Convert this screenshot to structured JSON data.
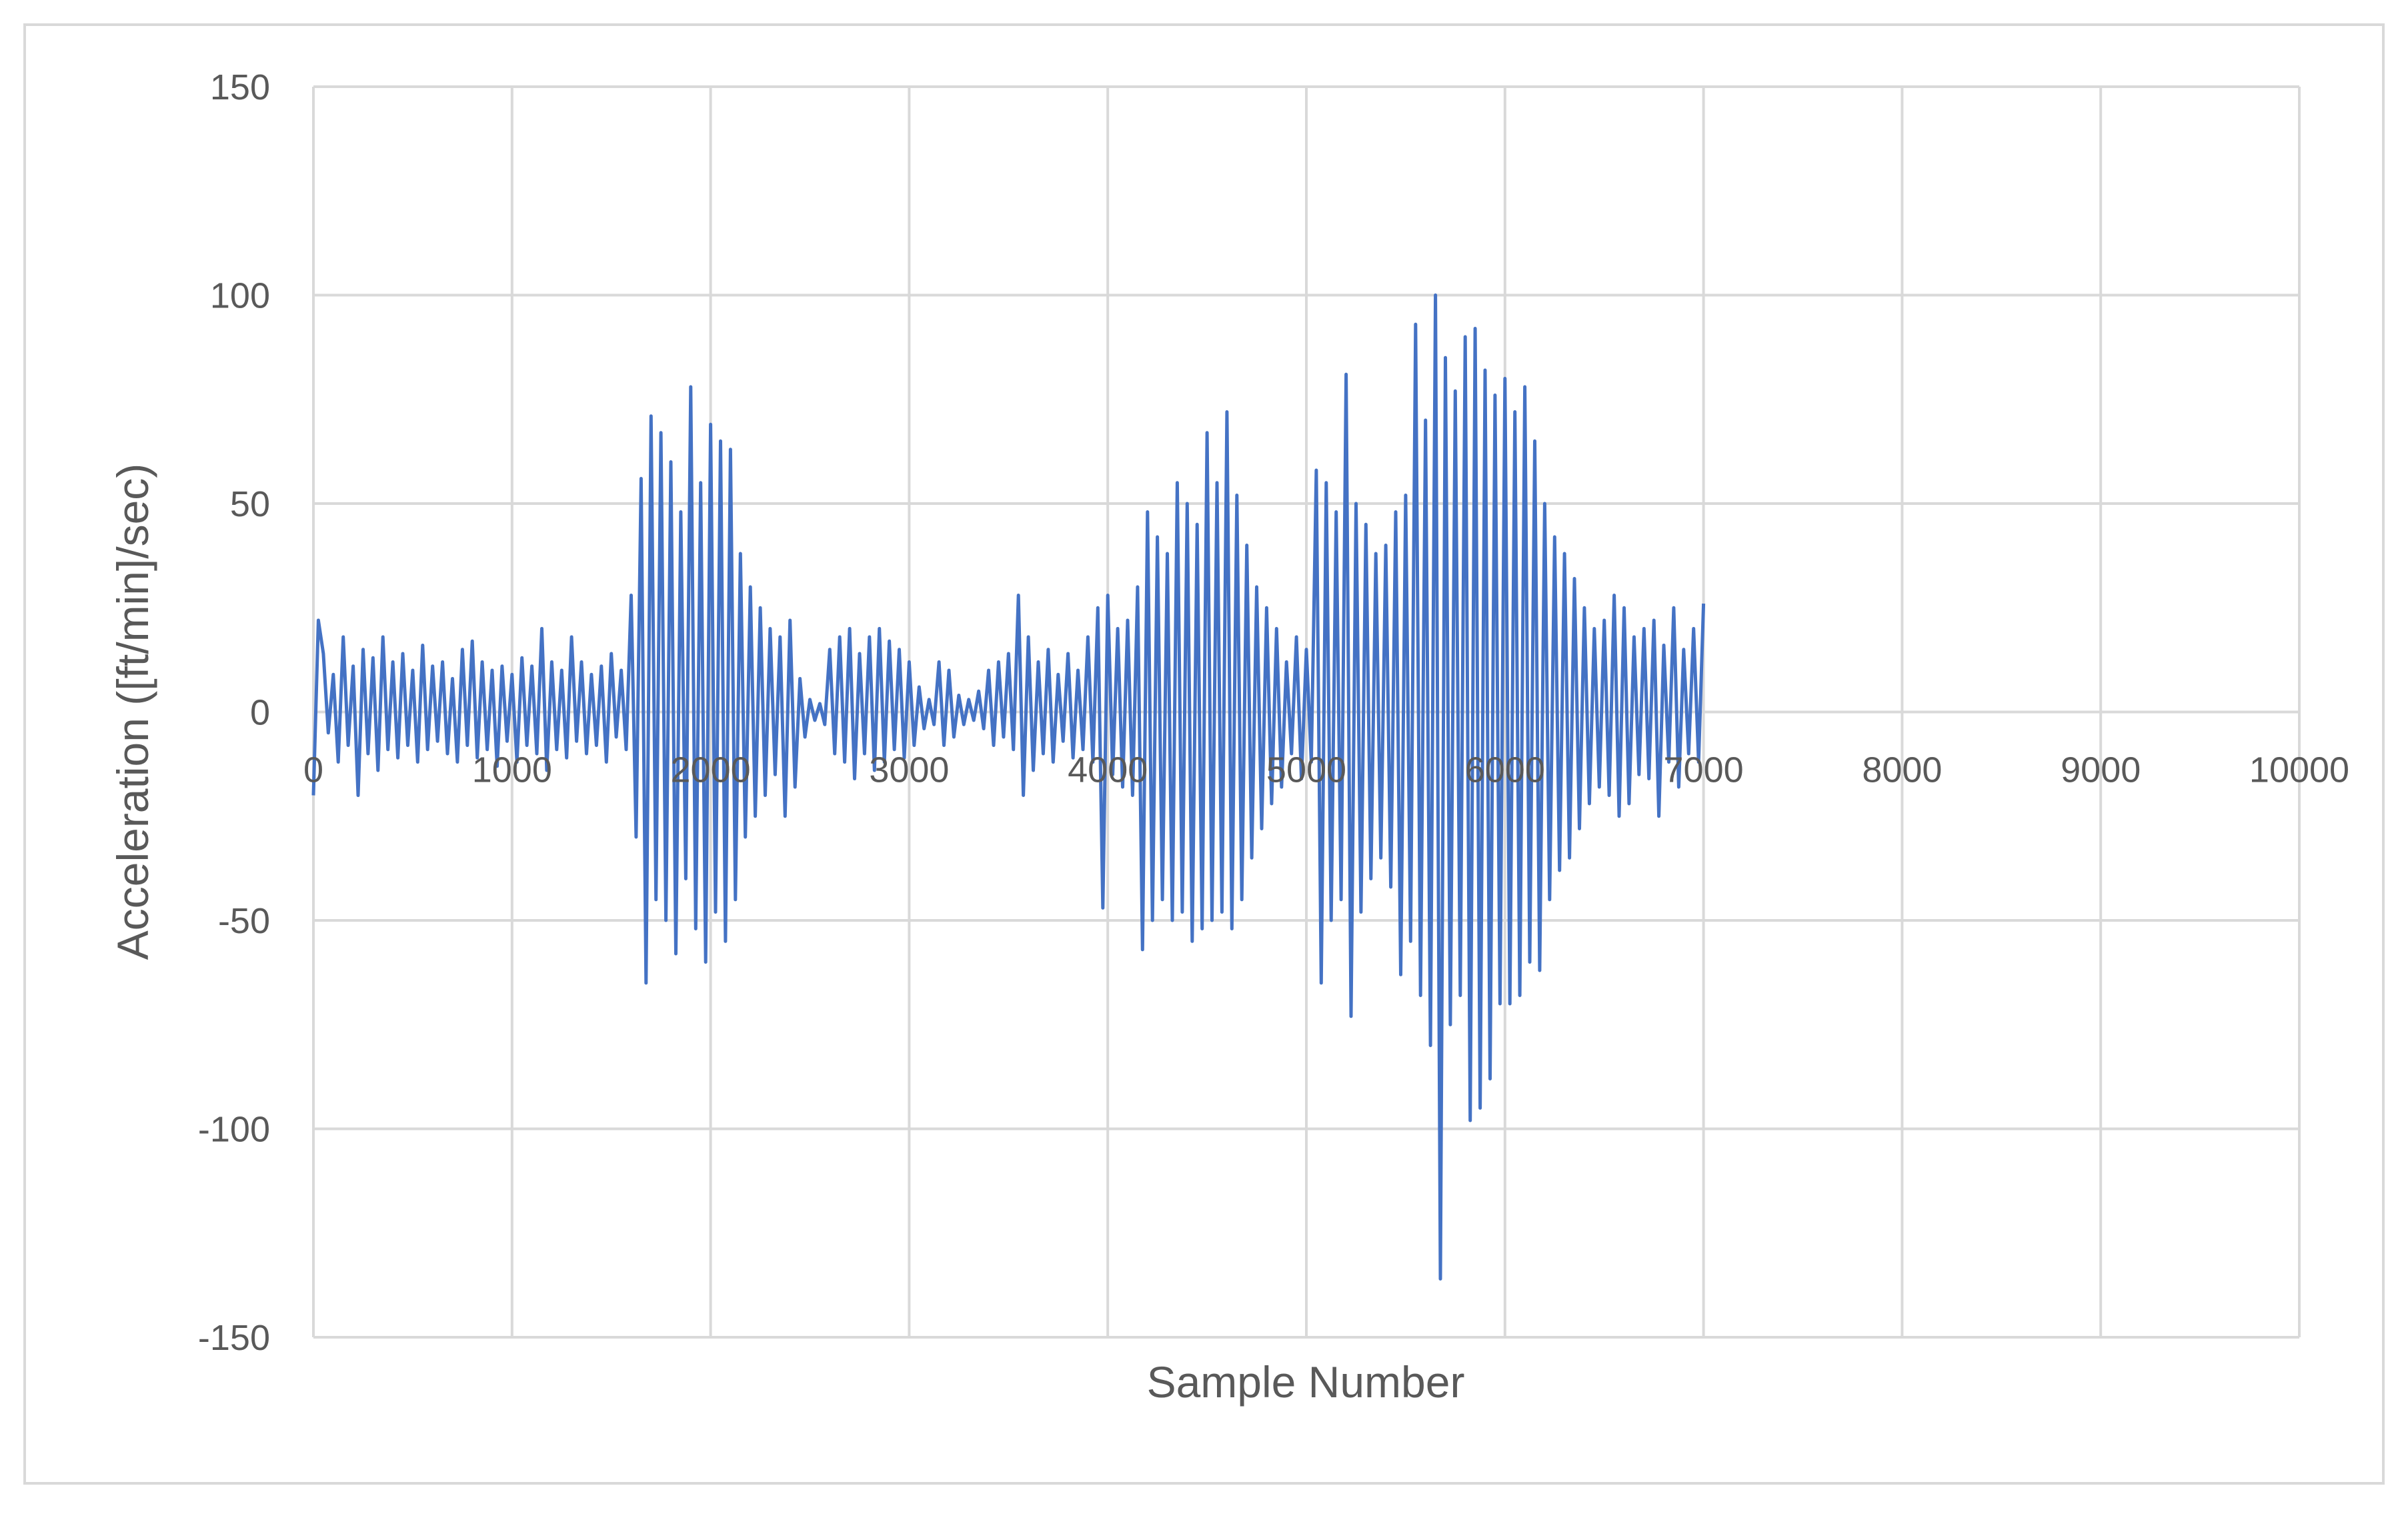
{
  "chart_data": {
    "type": "line",
    "title": "",
    "xlabel": "Sample Number",
    "ylabel": "Acceleration ([ft/min]/sec)",
    "xlim": [
      0,
      10000
    ],
    "ylim": [
      -150,
      150
    ],
    "x_ticks": [
      0,
      1000,
      2000,
      3000,
      4000,
      5000,
      6000,
      7000,
      8000,
      9000,
      10000
    ],
    "y_ticks": [
      150,
      100,
      50,
      0,
      -50,
      -100,
      -150
    ],
    "x_tick_labels": [
      "0",
      "1000",
      "2000",
      "3000",
      "4000",
      "5000",
      "6000",
      "7000",
      "8000",
      "9000",
      "10000"
    ],
    "y_tick_labels": [
      "150",
      "100",
      "50",
      "0",
      "-50",
      "-100",
      "-150"
    ],
    "grid": true,
    "legend": "none",
    "line_color": "#4472c4",
    "series": [
      {
        "x_start": 0,
        "x_step": 25,
        "values": [
          -20,
          22,
          14,
          -5,
          9,
          -12,
          18,
          -8,
          11,
          -20,
          15,
          -10,
          13,
          -14,
          18,
          -9,
          12,
          -11,
          14,
          -8,
          10,
          -12,
          16,
          -9,
          11,
          -7,
          12,
          -10,
          8,
          -12,
          15,
          -8,
          17,
          -11,
          12,
          -9,
          10,
          -13,
          11,
          -7,
          9,
          -12,
          13,
          -8,
          11,
          -10,
          20,
          -14,
          12,
          -9,
          10,
          -11,
          18,
          -7,
          12,
          -10,
          9,
          -8,
          11,
          -12,
          14,
          -6,
          10,
          -9,
          28,
          -30,
          56,
          -65,
          71,
          -45,
          67,
          -50,
          60,
          -58,
          48,
          -40,
          78,
          -52,
          55,
          -60,
          69,
          -48,
          65,
          -55,
          63,
          -45,
          38,
          -30,
          30,
          -25,
          25,
          -20,
          20,
          -15,
          18,
          -25,
          22,
          -18,
          8,
          -6,
          3,
          -2,
          2,
          -3,
          15,
          -10,
          18,
          -12,
          20,
          -16,
          14,
          -10,
          18,
          -14,
          20,
          -12,
          17,
          -9,
          15,
          -11,
          12,
          -8,
          6,
          -4,
          3,
          -3,
          12,
          -8,
          10,
          -6,
          4,
          -3,
          3,
          -2,
          5,
          -4,
          10,
          -8,
          12,
          -6,
          14,
          -9,
          28,
          -20,
          18,
          -14,
          12,
          -10,
          15,
          -12,
          9,
          -7,
          14,
          -11,
          10,
          -9,
          18,
          -12,
          25,
          -47,
          28,
          -15,
          20,
          -18,
          22,
          -20,
          30,
          -57,
          48,
          -50,
          42,
          -45,
          38,
          -50,
          55,
          -48,
          50,
          -55,
          45,
          -52,
          67,
          -50,
          55,
          -48,
          72,
          -52,
          52,
          -45,
          40,
          -35,
          30,
          -28,
          25,
          -22,
          20,
          -18,
          12,
          -10,
          18,
          -16,
          15,
          -12,
          58,
          -65,
          55,
          -50,
          48,
          -45,
          81,
          -73,
          50,
          -48,
          45,
          -40,
          38,
          -35,
          40,
          -42,
          48,
          -63,
          52,
          -55,
          93,
          -68,
          70,
          -80,
          100,
          -136,
          85,
          -75,
          77,
          -68,
          90,
          -98,
          92,
          -95,
          82,
          -88,
          76,
          -70,
          80,
          -70,
          72,
          -68,
          78,
          -60,
          65,
          -62,
          50,
          -45,
          42,
          -38,
          38,
          -35,
          32,
          -28,
          25,
          -22,
          20,
          -18,
          22,
          -20,
          28,
          -25,
          25,
          -22,
          18,
          -15,
          20,
          -16,
          22,
          -25,
          16,
          -12,
          25,
          -18,
          15,
          -10,
          20,
          -12,
          26
        ]
      }
    ]
  }
}
